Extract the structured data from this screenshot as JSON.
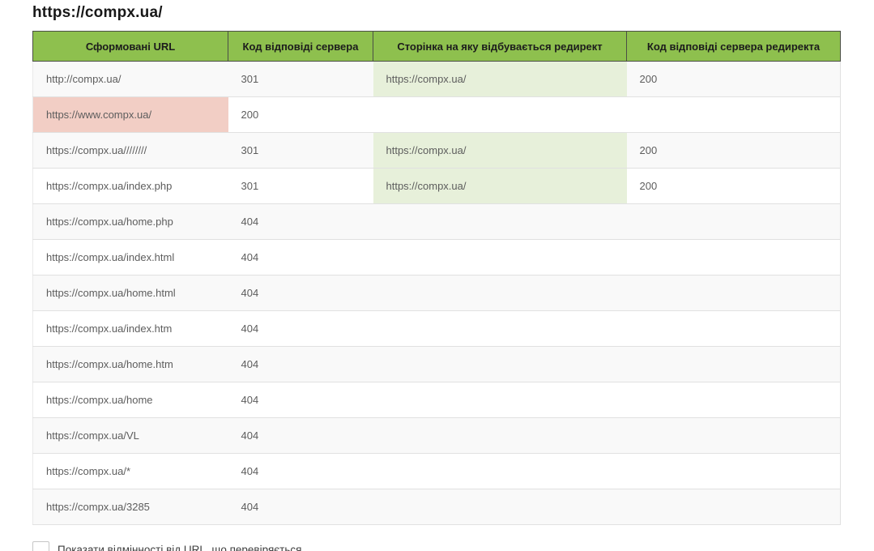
{
  "page": {
    "title": "https://compx.ua/"
  },
  "colors": {
    "header_green": "#8ec04e",
    "header_border": "#4b4f46",
    "highlight_pink": "#f2cec5",
    "highlight_green": "#e7f0da",
    "row_stripe": "#f9f9f9",
    "row_border": "#e1e1e1",
    "body_text": "#5d5d5d"
  },
  "table": {
    "columns": [
      "Сформовані URL",
      "Код відповіді сервера",
      "Сторінка на яку відбувається редирект",
      "Код відповіді сервера редиректа"
    ],
    "rows": [
      {
        "url": "http://compx.ua/",
        "code": "301",
        "redirect": "https://compx.ua/",
        "redirect_code": "200",
        "url_highlight": false,
        "redirect_highlight": true
      },
      {
        "url": "https://www.compx.ua/",
        "code": "200",
        "redirect": "",
        "redirect_code": "",
        "url_highlight": true,
        "redirect_highlight": false
      },
      {
        "url": "https://compx.ua////////",
        "code": "301",
        "redirect": "https://compx.ua/",
        "redirect_code": "200",
        "url_highlight": false,
        "redirect_highlight": true
      },
      {
        "url": "https://compx.ua/index.php",
        "code": "301",
        "redirect": "https://compx.ua/",
        "redirect_code": "200",
        "url_highlight": false,
        "redirect_highlight": true
      },
      {
        "url": "https://compx.ua/home.php",
        "code": "404",
        "redirect": "",
        "redirect_code": "",
        "url_highlight": false,
        "redirect_highlight": false
      },
      {
        "url": "https://compx.ua/index.html",
        "code": "404",
        "redirect": "",
        "redirect_code": "",
        "url_highlight": false,
        "redirect_highlight": false
      },
      {
        "url": "https://compx.ua/home.html",
        "code": "404",
        "redirect": "",
        "redirect_code": "",
        "url_highlight": false,
        "redirect_highlight": false
      },
      {
        "url": "https://compx.ua/index.htm",
        "code": "404",
        "redirect": "",
        "redirect_code": "",
        "url_highlight": false,
        "redirect_highlight": false
      },
      {
        "url": "https://compx.ua/home.htm",
        "code": "404",
        "redirect": "",
        "redirect_code": "",
        "url_highlight": false,
        "redirect_highlight": false
      },
      {
        "url": "https://compx.ua/home",
        "code": "404",
        "redirect": "",
        "redirect_code": "",
        "url_highlight": false,
        "redirect_highlight": false
      },
      {
        "url": "https://compx.ua/VL",
        "code": "404",
        "redirect": "",
        "redirect_code": "",
        "url_highlight": false,
        "redirect_highlight": false
      },
      {
        "url": "https://compx.ua/*",
        "code": "404",
        "redirect": "",
        "redirect_code": "",
        "url_highlight": false,
        "redirect_highlight": false
      },
      {
        "url": "https://compx.ua/3285",
        "code": "404",
        "redirect": "",
        "redirect_code": "",
        "url_highlight": false,
        "redirect_highlight": false
      }
    ]
  },
  "footer": {
    "checkbox_label": "Показати відмінності від URL, що перевіряється",
    "checkbox_checked": false
  }
}
